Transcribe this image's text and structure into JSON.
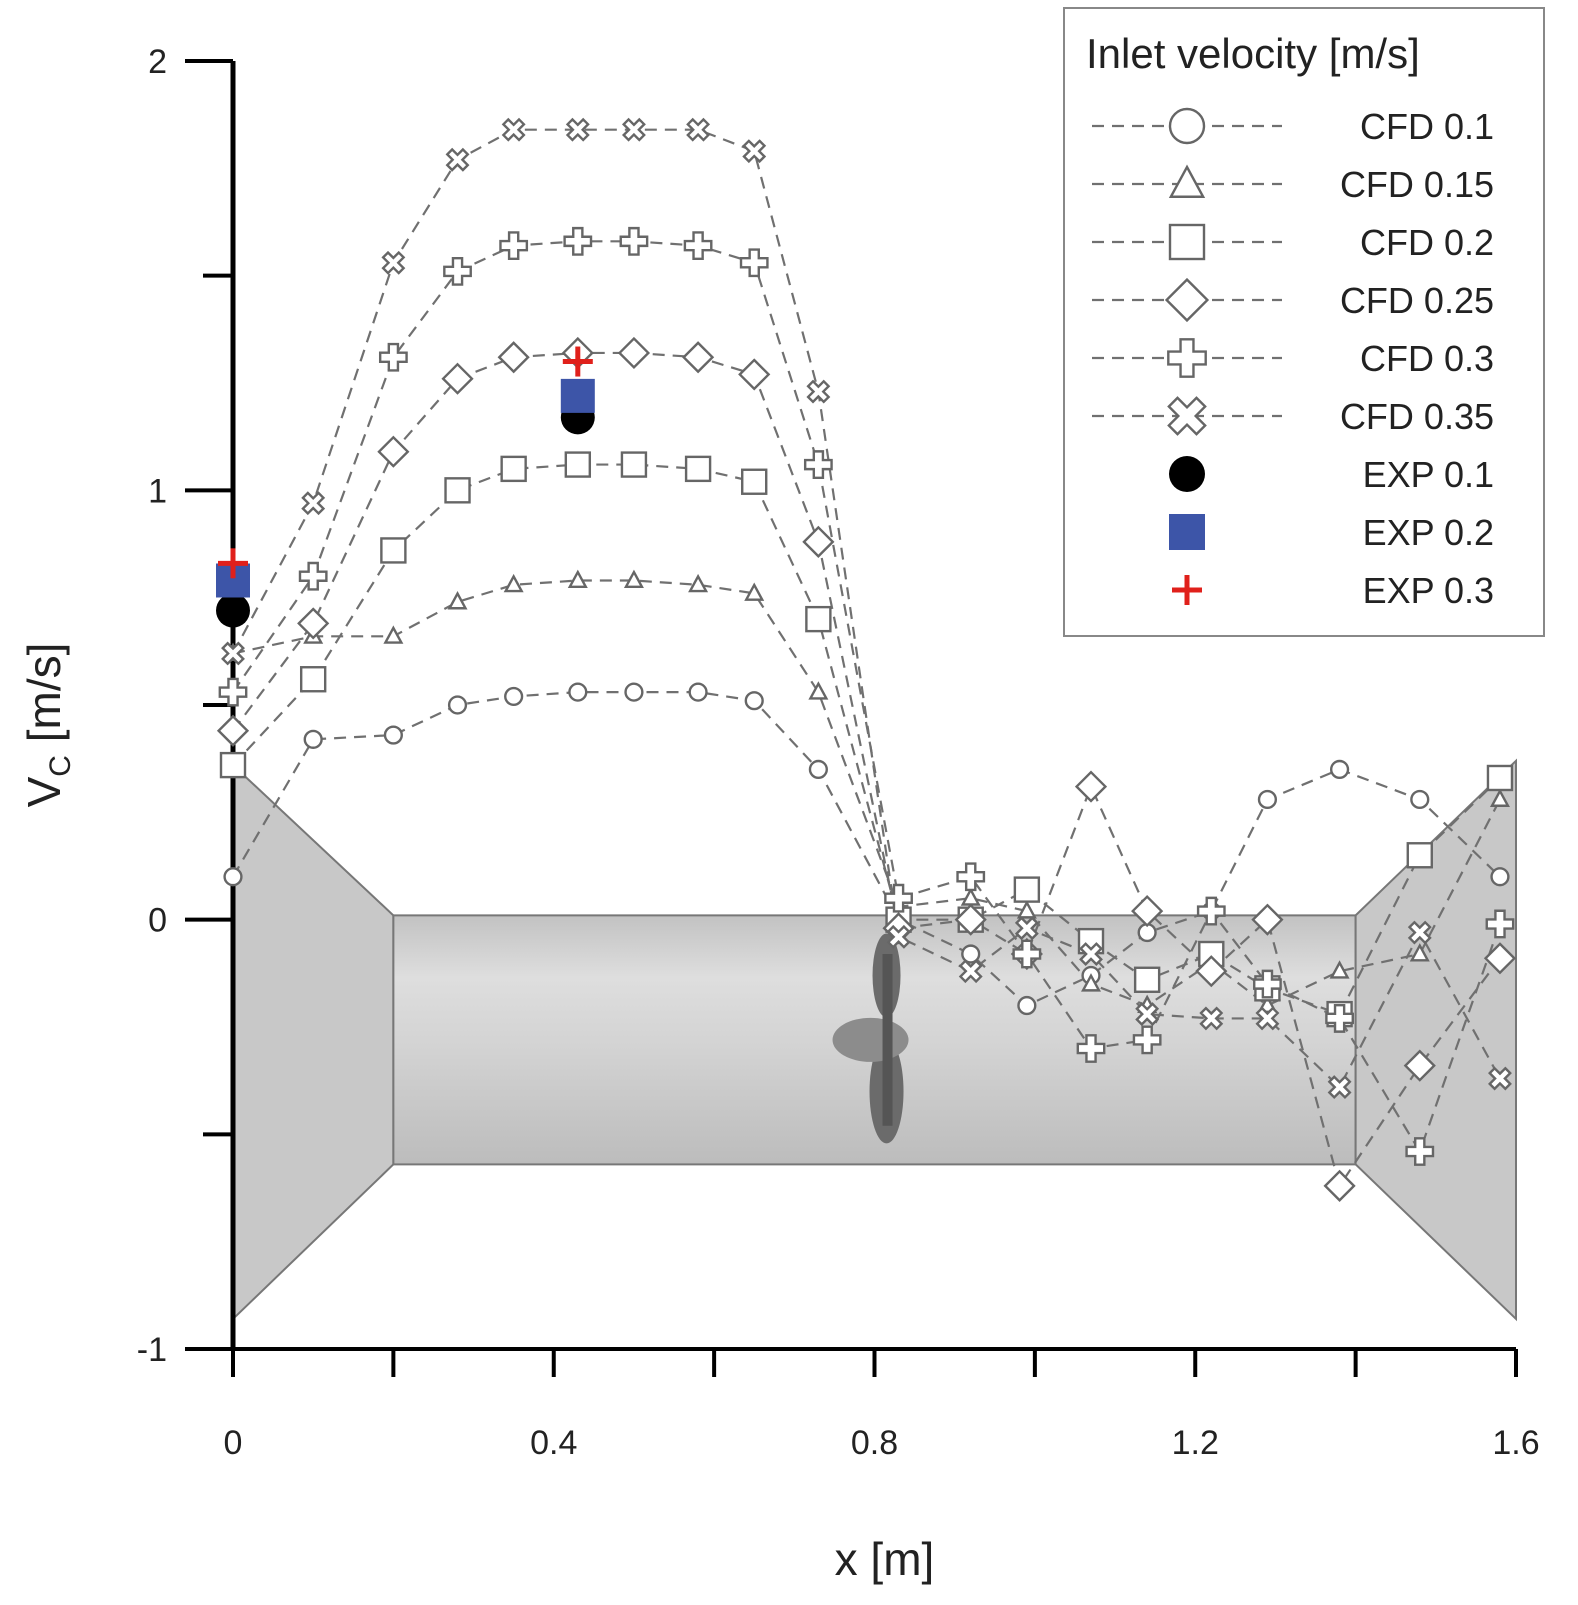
{
  "chart_data": {
    "type": "scatter",
    "xlabel": "x [m]",
    "ylabel": {
      "main": "V",
      "sub": "C",
      "unit": " [m/s]"
    },
    "xlim": [
      0,
      1.6
    ],
    "ylim": [
      -1,
      2
    ],
    "x_ticks": [
      0,
      0.4,
      0.8,
      1.2,
      1.6
    ],
    "x_tick_labels": [
      "0",
      "0.4",
      "0.8",
      "1.2",
      "1.6"
    ],
    "y_ticks": [
      -1,
      0,
      1,
      2
    ],
    "y_tick_labels": [
      "-1",
      "0",
      "1",
      "2"
    ],
    "grid": false,
    "legend": {
      "title": "Inlet velocity [m/s]",
      "position": "top-right"
    },
    "background_geometry": {
      "description": "channel with converging inlet, straight section with propeller, diverging outlet",
      "fill": "#c8c8c8"
    },
    "series": [
      {
        "name": "CFD 0.1",
        "marker": "circle",
        "size": 0.7,
        "style": "dashed",
        "x": [
          0,
          0.1,
          0.2,
          0.28,
          0.35,
          0.43,
          0.5,
          0.58,
          0.65,
          0.73,
          0.83,
          0.92,
          0.99,
          1.07,
          1.14,
          1.22,
          1.29,
          1.38,
          1.48,
          1.58
        ],
        "y": [
          0.1,
          0.42,
          0.43,
          0.5,
          0.52,
          0.53,
          0.53,
          0.53,
          0.51,
          0.35,
          0.0,
          -0.08,
          -0.2,
          -0.13,
          -0.03,
          0.02,
          0.28,
          0.35,
          0.28,
          0.1
        ]
      },
      {
        "name": "CFD 0.15",
        "marker": "triangle",
        "size": 0.7,
        "style": "dashed",
        "x": [
          0,
          0.1,
          0.2,
          0.28,
          0.35,
          0.43,
          0.5,
          0.58,
          0.65,
          0.73,
          0.83,
          0.92,
          0.99,
          1.07,
          1.14,
          1.22,
          1.29,
          1.38,
          1.48,
          1.58
        ],
        "y": [
          0.62,
          0.66,
          0.66,
          0.74,
          0.78,
          0.79,
          0.79,
          0.78,
          0.76,
          0.53,
          0.03,
          0.05,
          0.02,
          -0.15,
          -0.2,
          -0.1,
          -0.2,
          -0.12,
          -0.08,
          0.28
        ]
      },
      {
        "name": "CFD 0.2",
        "marker": "square",
        "size": 1.0,
        "style": "dashed",
        "x": [
          0,
          0.1,
          0.2,
          0.28,
          0.35,
          0.43,
          0.5,
          0.58,
          0.65,
          0.73,
          0.83,
          0.92,
          0.99,
          1.07,
          1.14,
          1.22,
          1.29,
          1.38,
          1.48,
          1.58
        ],
        "y": [
          0.36,
          0.56,
          0.86,
          1.0,
          1.05,
          1.06,
          1.06,
          1.05,
          1.02,
          0.7,
          0.0,
          0.0,
          0.07,
          -0.05,
          -0.14,
          -0.08,
          -0.16,
          -0.22,
          0.15,
          0.33
        ]
      },
      {
        "name": "CFD 0.25",
        "marker": "diamond",
        "size": 1.0,
        "style": "dashed",
        "x": [
          0,
          0.1,
          0.2,
          0.28,
          0.35,
          0.43,
          0.5,
          0.58,
          0.65,
          0.73,
          0.83,
          0.92,
          0.99,
          1.07,
          1.14,
          1.22,
          1.29,
          1.38,
          1.48,
          1.58
        ],
        "y": [
          0.44,
          0.69,
          1.09,
          1.26,
          1.31,
          1.32,
          1.32,
          1.31,
          1.27,
          0.88,
          -0.02,
          0.0,
          -0.08,
          0.31,
          0.02,
          -0.12,
          0.0,
          -0.62,
          -0.34,
          -0.09
        ]
      },
      {
        "name": "CFD 0.3",
        "marker": "plus-outline",
        "size": 1.0,
        "style": "dashed",
        "x": [
          0,
          0.1,
          0.2,
          0.28,
          0.35,
          0.43,
          0.5,
          0.58,
          0.65,
          0.73,
          0.83,
          0.92,
          0.99,
          1.07,
          1.14,
          1.22,
          1.29,
          1.38,
          1.48,
          1.58
        ],
        "y": [
          0.53,
          0.8,
          1.31,
          1.51,
          1.57,
          1.58,
          1.58,
          1.57,
          1.53,
          1.06,
          0.05,
          0.1,
          -0.08,
          -0.3,
          -0.28,
          0.02,
          -0.15,
          -0.23,
          -0.54,
          -0.01
        ]
      },
      {
        "name": "CFD 0.35",
        "marker": "x-outline",
        "size": 0.8,
        "style": "dashed",
        "x": [
          0,
          0.1,
          0.2,
          0.28,
          0.35,
          0.43,
          0.5,
          0.58,
          0.65,
          0.73,
          0.83,
          0.92,
          0.99,
          1.07,
          1.14,
          1.22,
          1.29,
          1.38,
          1.48,
          1.58
        ],
        "y": [
          0.62,
          0.97,
          1.53,
          1.77,
          1.84,
          1.84,
          1.84,
          1.84,
          1.79,
          1.23,
          -0.04,
          -0.12,
          -0.02,
          -0.08,
          -0.22,
          -0.23,
          -0.23,
          -0.39,
          -0.03,
          -0.37
        ]
      },
      {
        "name": "EXP 0.1",
        "marker": "filled-circle",
        "color": "#000000",
        "x": [
          0,
          0.43
        ],
        "y": [
          0.72,
          1.17
        ]
      },
      {
        "name": "EXP 0.2",
        "marker": "filled-square",
        "color": "#3d55a8",
        "x": [
          0,
          0.43
        ],
        "y": [
          0.79,
          1.22
        ]
      },
      {
        "name": "EXP 0.3",
        "marker": "plus",
        "color": "#e0201b",
        "x": [
          0,
          0.43
        ],
        "y": [
          0.83,
          1.3
        ]
      }
    ]
  }
}
